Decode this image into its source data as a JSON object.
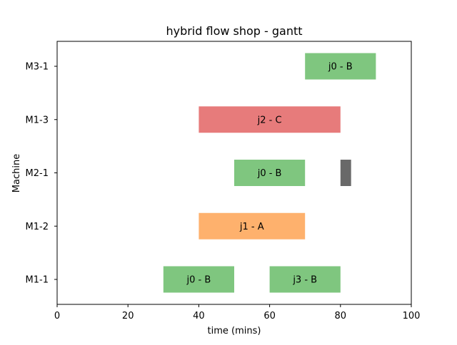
{
  "chart_data": {
    "type": "gantt",
    "title": "hybrid flow shop - gantt",
    "xlabel": "time (mins)",
    "ylabel": "Machine",
    "xlim": [
      0,
      100
    ],
    "xticks": [
      0,
      20,
      40,
      60,
      80,
      100
    ],
    "machines": [
      "M1-1",
      "M1-2",
      "M2-1",
      "M1-3",
      "M3-1"
    ],
    "job_colors": {
      "j0": "#7fc67f",
      "j1": "#feb16d",
      "j2": "#e77b7b",
      "j3": "#7fc67f",
      "idle": "#696969"
    },
    "tasks": [
      {
        "machine": "M1-1",
        "start": 30,
        "end": 50,
        "label": "j0 - B",
        "job": "j0"
      },
      {
        "machine": "M1-1",
        "start": 60,
        "end": 80,
        "label": "j3 - B",
        "job": "j3"
      },
      {
        "machine": "M1-2",
        "start": 40,
        "end": 70,
        "label": "j1 - A",
        "job": "j1"
      },
      {
        "machine": "M2-1",
        "start": 50,
        "end": 70,
        "label": "j0 - B",
        "job": "j0"
      },
      {
        "machine": "M2-1",
        "start": 80,
        "end": 83,
        "label": "",
        "job": "idle"
      },
      {
        "machine": "M1-3",
        "start": 40,
        "end": 80,
        "label": "j2 - C",
        "job": "j2"
      },
      {
        "machine": "M3-1",
        "start": 70,
        "end": 90,
        "label": "j0 - B",
        "job": "j0"
      }
    ]
  }
}
